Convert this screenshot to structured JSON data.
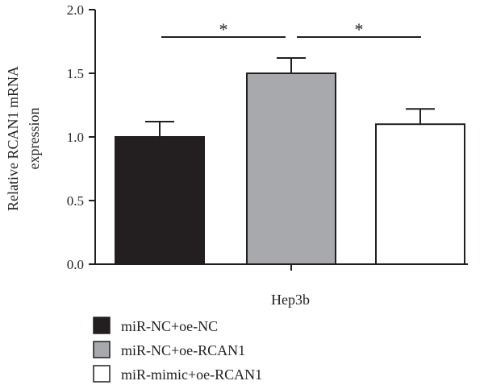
{
  "chart_data": {
    "type": "bar",
    "xlabel": "Hep3b",
    "ylabel_lines": [
      "Relative RCAN1 mRNA",
      "expression"
    ],
    "ylim": [
      0,
      2.0
    ],
    "yticks": [
      "0.0",
      "0.5",
      "1.0",
      "1.5",
      "2.0"
    ],
    "grid": false,
    "legend_position": "bottom-left",
    "series": [
      {
        "name": "miR-NC+oe-NC",
        "value": 1.0,
        "error": 0.12,
        "color": "#231f20"
      },
      {
        "name": "miR-NC+oe-RCAN1",
        "value": 1.5,
        "error": 0.12,
        "color": "#a7a9ac"
      },
      {
        "name": "miR-mimic+oe-RCAN1",
        "value": 1.1,
        "error": 0.12,
        "color": "#ffffff"
      }
    ],
    "significance": [
      {
        "from": 0,
        "to": 1,
        "label": "*"
      },
      {
        "from": 1,
        "to": 2,
        "label": "*"
      }
    ]
  }
}
